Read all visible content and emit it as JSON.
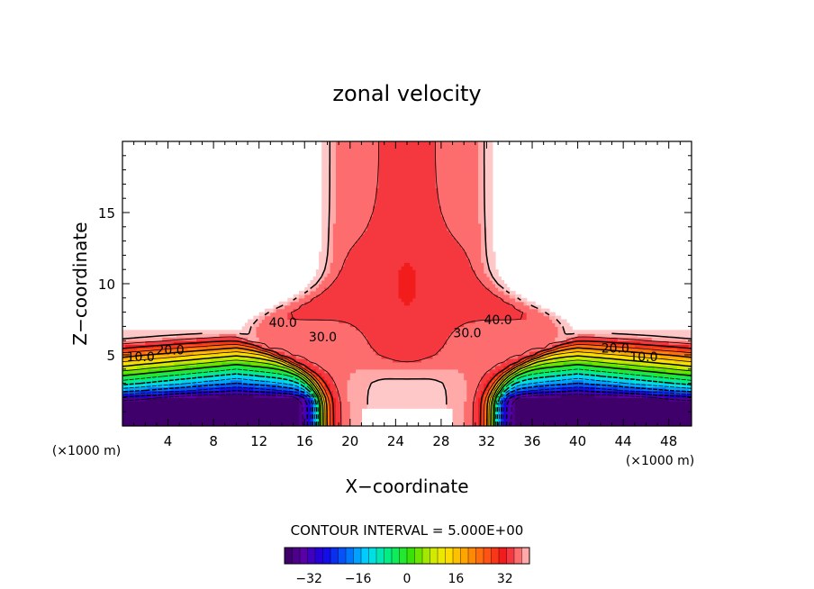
{
  "chart_data": {
    "type": "heatmap",
    "title": "zonal velocity",
    "xlabel": "X−coordinate",
    "ylabel": "Z−coordinate",
    "x_unit_left": "(×1000 m)",
    "x_unit_right": "(×1000 m)",
    "xlim": [
      0,
      50
    ],
    "ylim": [
      0,
      20
    ],
    "x_ticks": [
      {
        "value": 4,
        "label": "4"
      },
      {
        "value": 8,
        "label": "8"
      },
      {
        "value": 12,
        "label": "12"
      },
      {
        "value": 16,
        "label": "16"
      },
      {
        "value": 20,
        "label": "20"
      },
      {
        "value": 24,
        "label": "24"
      },
      {
        "value": 28,
        "label": "28"
      },
      {
        "value": 32,
        "label": "32"
      },
      {
        "value": 36,
        "label": "36"
      },
      {
        "value": 40,
        "label": "40"
      },
      {
        "value": 44,
        "label": "44"
      },
      {
        "value": 48,
        "label": "48"
      }
    ],
    "y_ticks": [
      {
        "value": 5,
        "label": "5"
      },
      {
        "value": 10,
        "label": "10"
      },
      {
        "value": 15,
        "label": "15"
      }
    ],
    "contour_labels": [
      {
        "text": "40.0",
        "x": 14.1,
        "z": 7.2
      },
      {
        "text": "30.0",
        "x": 17.6,
        "z": 6.2
      },
      {
        "text": "20.0",
        "x": 4.2,
        "z": 5.3
      },
      {
        "text": "10.0",
        "x": 1.6,
        "z": 4.8
      },
      {
        "text": "40.0",
        "x": 33.0,
        "z": 7.4
      },
      {
        "text": "30.0",
        "x": 30.3,
        "z": 6.5
      },
      {
        "text": "20.0",
        "x": 43.3,
        "z": 5.4
      },
      {
        "text": "10.0",
        "x": 45.8,
        "z": 4.8
      }
    ],
    "contour_interval_text": "CONTOUR INTERVAL = 5.000E+00",
    "colorbar": {
      "range": [
        -40,
        40
      ],
      "ticks": [
        {
          "value": -32,
          "label": "−32"
        },
        {
          "value": -16,
          "label": "−16"
        },
        {
          "value": 0,
          "label": "0"
        },
        {
          "value": 16,
          "label": "16"
        },
        {
          "value": 32,
          "label": "32"
        }
      ]
    },
    "grid": false
  }
}
